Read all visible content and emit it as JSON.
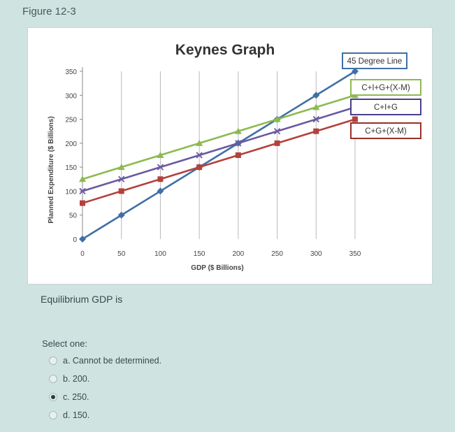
{
  "figure_label": "Figure 12-3",
  "question": "Equilibrium GDP is",
  "select_label": "Select one:",
  "options": [
    {
      "text": "a. Cannot be determined.",
      "selected": false
    },
    {
      "text": "b. 200.",
      "selected": false
    },
    {
      "text": "c. 250.",
      "selected": true
    },
    {
      "text": "d. 150.",
      "selected": false
    }
  ],
  "chart_data": {
    "type": "line",
    "title": "Keynes Graph",
    "xlabel": "GDP ($ Billions)",
    "ylabel": "Planned Expenditure ($ Billions)",
    "xlim": [
      0,
      350
    ],
    "ylim": [
      0,
      350
    ],
    "x_ticks": [
      "0",
      "50",
      "100",
      "150",
      "200",
      "250",
      "300",
      "350"
    ],
    "y_ticks": [
      "0",
      "50",
      "100",
      "150",
      "200",
      "250",
      "300",
      "350"
    ],
    "grid": "vertical",
    "legend": "right",
    "series": [
      {
        "name": "45 Degree Line",
        "color": "#3f6fa6",
        "marker": "diamond",
        "x": [
          0,
          50,
          100,
          150,
          200,
          250,
          300,
          350
        ],
        "y": [
          0,
          50,
          100,
          150,
          200,
          250,
          300,
          350
        ]
      },
      {
        "name": "C+I+G+(X-M)",
        "color": "#8dba4f",
        "marker": "triangle",
        "x": [
          0,
          50,
          100,
          150,
          200,
          250,
          300,
          350
        ],
        "y": [
          125,
          150,
          175,
          200,
          225,
          250,
          275,
          300
        ]
      },
      {
        "name": "C+I+G",
        "color": "#6a5a9e",
        "marker": "x",
        "x": [
          0,
          50,
          100,
          150,
          200,
          250,
          300,
          350
        ],
        "y": [
          100,
          125,
          150,
          175,
          200,
          225,
          250,
          275
        ]
      },
      {
        "name": "C+G+(X-M)",
        "color": "#b3413c",
        "marker": "square",
        "x": [
          0,
          50,
          100,
          150,
          200,
          250,
          300,
          350
        ],
        "y": [
          75,
          100,
          125,
          150,
          175,
          200,
          225,
          250
        ]
      }
    ]
  }
}
